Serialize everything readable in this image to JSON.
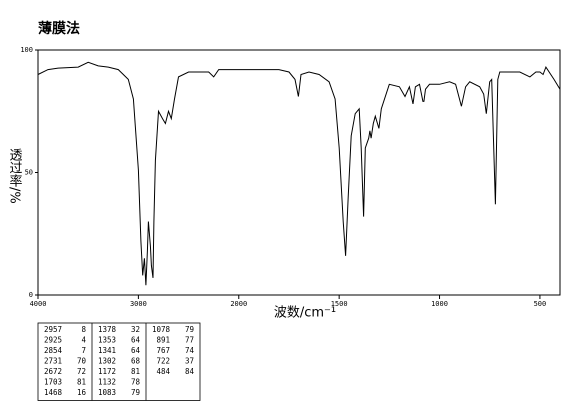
{
  "chart_data": {
    "type": "line",
    "title": "薄膜法",
    "x_label": "波数/cm⁻¹",
    "y_label": "透过率/%",
    "color": "#000000",
    "xlim": [
      4000,
      400
    ],
    "xticks": [
      4000,
      3000,
      2000,
      1500,
      1000,
      500
    ],
    "ylim": [
      0,
      100
    ],
    "yticks": [
      0,
      50,
      100
    ],
    "x": [
      4000,
      3900,
      3800,
      3600,
      3500,
      3400,
      3300,
      3200,
      3100,
      3050,
      3000,
      2975,
      2957,
      2940,
      2925,
      2910,
      2900,
      2880,
      2870,
      2854,
      2845,
      2830,
      2800,
      2760,
      2731,
      2700,
      2672,
      2640,
      2600,
      2500,
      2400,
      2300,
      2250,
      2200,
      2100,
      2000,
      1900,
      1800,
      1750,
      1720,
      1703,
      1690,
      1650,
      1600,
      1550,
      1520,
      1500,
      1480,
      1468,
      1455,
      1440,
      1420,
      1400,
      1390,
      1378,
      1370,
      1353,
      1347,
      1341,
      1330,
      1320,
      1302,
      1290,
      1250,
      1200,
      1172,
      1150,
      1132,
      1120,
      1100,
      1083,
      1078,
      1070,
      1050,
      1000,
      950,
      920,
      891,
      870,
      850,
      800,
      780,
      767,
      750,
      740,
      722,
      710,
      700,
      650,
      600,
      550,
      520,
      500,
      484,
      470,
      430,
      400
    ],
    "values": [
      90,
      92,
      92.6,
      93,
      95,
      93.5,
      93,
      92,
      88,
      80,
      51,
      22,
      8,
      15,
      4,
      18,
      30,
      20,
      12,
      7,
      30,
      55,
      75,
      72,
      70,
      75,
      72,
      80,
      89,
      91,
      91,
      91,
      89,
      92,
      92,
      92,
      92,
      92,
      91,
      88,
      81,
      90,
      91,
      90,
      87,
      80,
      60,
      30,
      16,
      40,
      65,
      74,
      76,
      60,
      32,
      60,
      64,
      67,
      64,
      70,
      73,
      68,
      76,
      86,
      85,
      81,
      85,
      78,
      85,
      86,
      79,
      79,
      84,
      86,
      86,
      87,
      86,
      77,
      85,
      87,
      85,
      82,
      74,
      87,
      88,
      37,
      88,
      91,
      91,
      91,
      89,
      91,
      91,
      90,
      93,
      88,
      84
    ]
  },
  "peak_table": [
    [
      [
        2957,
        8
      ],
      [
        2925,
        4
      ],
      [
        2854,
        7
      ],
      [
        2731,
        70
      ],
      [
        2672,
        72
      ],
      [
        1703,
        81
      ],
      [
        1468,
        16
      ]
    ],
    [
      [
        1378,
        32
      ],
      [
        1353,
        64
      ],
      [
        1341,
        64
      ],
      [
        1302,
        68
      ],
      [
        1172,
        81
      ],
      [
        1132,
        78
      ],
      [
        1083,
        79
      ]
    ],
    [
      [
        1078,
        79
      ],
      [
        891,
        77
      ],
      [
        767,
        74
      ],
      [
        722,
        37
      ],
      [
        484,
        84
      ]
    ]
  ]
}
